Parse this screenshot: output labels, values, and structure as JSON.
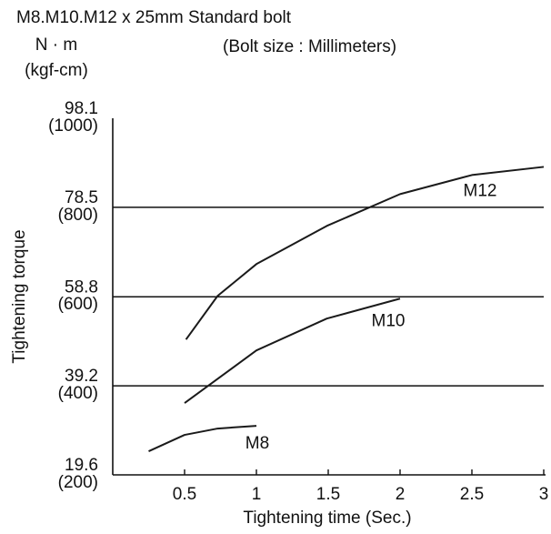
{
  "chart_data": {
    "type": "line",
    "title": "M8.M10.M12 x 25mm   Standard bolt",
    "subtitle": "(Bolt size : Millimeters)",
    "y_unit": "N · m",
    "y2_unit": "(kgf-cm)",
    "ylabel": "Tightening torque",
    "xlabel": "Tightening time (Sec.)",
    "xlim": [
      0,
      3
    ],
    "xticks": [
      0.5,
      1,
      1.5,
      2,
      2.5,
      3
    ],
    "ylim": [
      19.6,
      98.1
    ],
    "yticks": [
      19.6,
      39.2,
      58.8,
      78.5,
      98.1
    ],
    "y2lim": [
      200,
      1000
    ],
    "y2ticks": [
      {
        "value": 200,
        "label": "(200)"
      },
      {
        "value": 400,
        "label": "(400)"
      },
      {
        "value": 600,
        "label": "(600)"
      },
      {
        "value": 800,
        "label": "(800)"
      },
      {
        "value": 1000,
        "label": "(1000)"
      }
    ],
    "grid": true,
    "series": [
      {
        "name": "M12",
        "color": "#1a1a1a",
        "x": [
          0.51,
          0.73,
          1.0,
          1.49,
          2.0,
          2.5,
          3.0
        ],
        "values": [
          49.4,
          59.0,
          66.0,
          74.4,
          81.4,
          85.6,
          87.4
        ]
      },
      {
        "name": "M10",
        "color": "#1a1a1a",
        "x": [
          0.5,
          1.0,
          1.49,
          2.0
        ],
        "values": [
          35.4,
          47.0,
          54.0,
          58.4
        ]
      },
      {
        "name": "M8",
        "color": "#1a1a1a",
        "x": [
          0.25,
          0.5,
          0.73,
          1.0
        ],
        "values": [
          24.8,
          28.4,
          29.8,
          30.4
        ]
      }
    ]
  }
}
